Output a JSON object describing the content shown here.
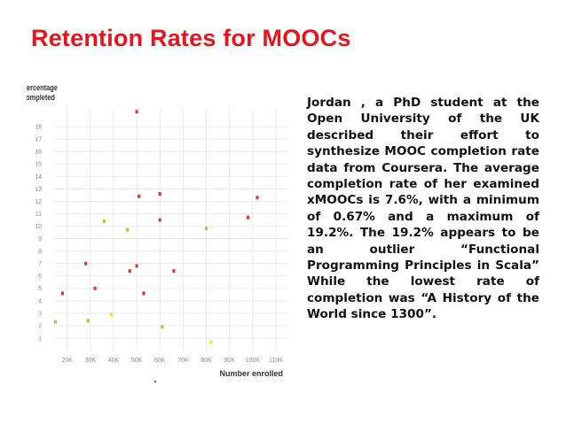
{
  "slide": {
    "title": "Retention Rates for MOOCs",
    "body": "Jordan , a PhD student at the Open University of the UK described their effort to synthesize MOOC completion rate data from Coursera. The average completion rate of her examined xMOOCs is 7.6%, with a minimum of 0.67% and a maximum of 19.2%. The 19.2% appears to be an outlier “Functional Programming Principles in Scala” While the lowest rate of completion was “A History of the World since 1300”."
  },
  "chart_data": {
    "type": "scatter",
    "ylabel_lines": [
      "Percentage",
      "completed"
    ],
    "xlabel": "Number enrolled",
    "x_ticks": [
      "20K",
      "30K",
      "40K",
      "50K",
      "60K",
      "70K",
      "80K",
      "90K",
      "100K",
      "110K"
    ],
    "x_tick_values": [
      20000,
      30000,
      40000,
      50000,
      60000,
      70000,
      80000,
      90000,
      100000,
      110000
    ],
    "y_ticks": [
      "1",
      "2",
      "3",
      "4",
      "5",
      "6",
      "7",
      "8",
      "9",
      "10",
      "11",
      "12",
      "13",
      "14",
      "15",
      "16",
      "17",
      "18"
    ],
    "y_tick_values": [
      1,
      2,
      3,
      4,
      5,
      6,
      7,
      8,
      9,
      10,
      11,
      12,
      13,
      14,
      15,
      16,
      17,
      18
    ],
    "xlim": [
      14000,
      115000
    ],
    "ylim": [
      0,
      19.5
    ],
    "grid": true,
    "colors": {
      "red": "#e3352a",
      "green": "#a9cc3c",
      "yellow": "#e8e83a",
      "grid": "#e6e6e6",
      "tick_label": "#8a8a8a"
    },
    "points": [
      {
        "x": 50000,
        "y": 19.2,
        "color": "red"
      },
      {
        "x": 51000,
        "y": 12.4,
        "color": "red"
      },
      {
        "x": 60000,
        "y": 12.6,
        "color": "red"
      },
      {
        "x": 102000,
        "y": 12.3,
        "color": "red"
      },
      {
        "x": 60000,
        "y": 10.5,
        "color": "red"
      },
      {
        "x": 98000,
        "y": 10.7,
        "color": "red"
      },
      {
        "x": 36000,
        "y": 10.4,
        "color": "green"
      },
      {
        "x": 46000,
        "y": 9.7,
        "color": "green"
      },
      {
        "x": 80000,
        "y": 9.8,
        "color": "green"
      },
      {
        "x": 28000,
        "y": 7.0,
        "color": "red"
      },
      {
        "x": 50000,
        "y": 6.8,
        "color": "red"
      },
      {
        "x": 47000,
        "y": 6.4,
        "color": "red"
      },
      {
        "x": 66000,
        "y": 6.4,
        "color": "red"
      },
      {
        "x": 32000,
        "y": 5.0,
        "color": "red"
      },
      {
        "x": 18000,
        "y": 4.6,
        "color": "red"
      },
      {
        "x": 53000,
        "y": 4.6,
        "color": "red"
      },
      {
        "x": 39000,
        "y": 2.9,
        "color": "yellow"
      },
      {
        "x": 15000,
        "y": 2.3,
        "color": "green"
      },
      {
        "x": 29000,
        "y": 2.4,
        "color": "green"
      },
      {
        "x": 61000,
        "y": 1.9,
        "color": "green"
      },
      {
        "x": 82000,
        "y": 0.67,
        "color": "yellow"
      }
    ]
  }
}
